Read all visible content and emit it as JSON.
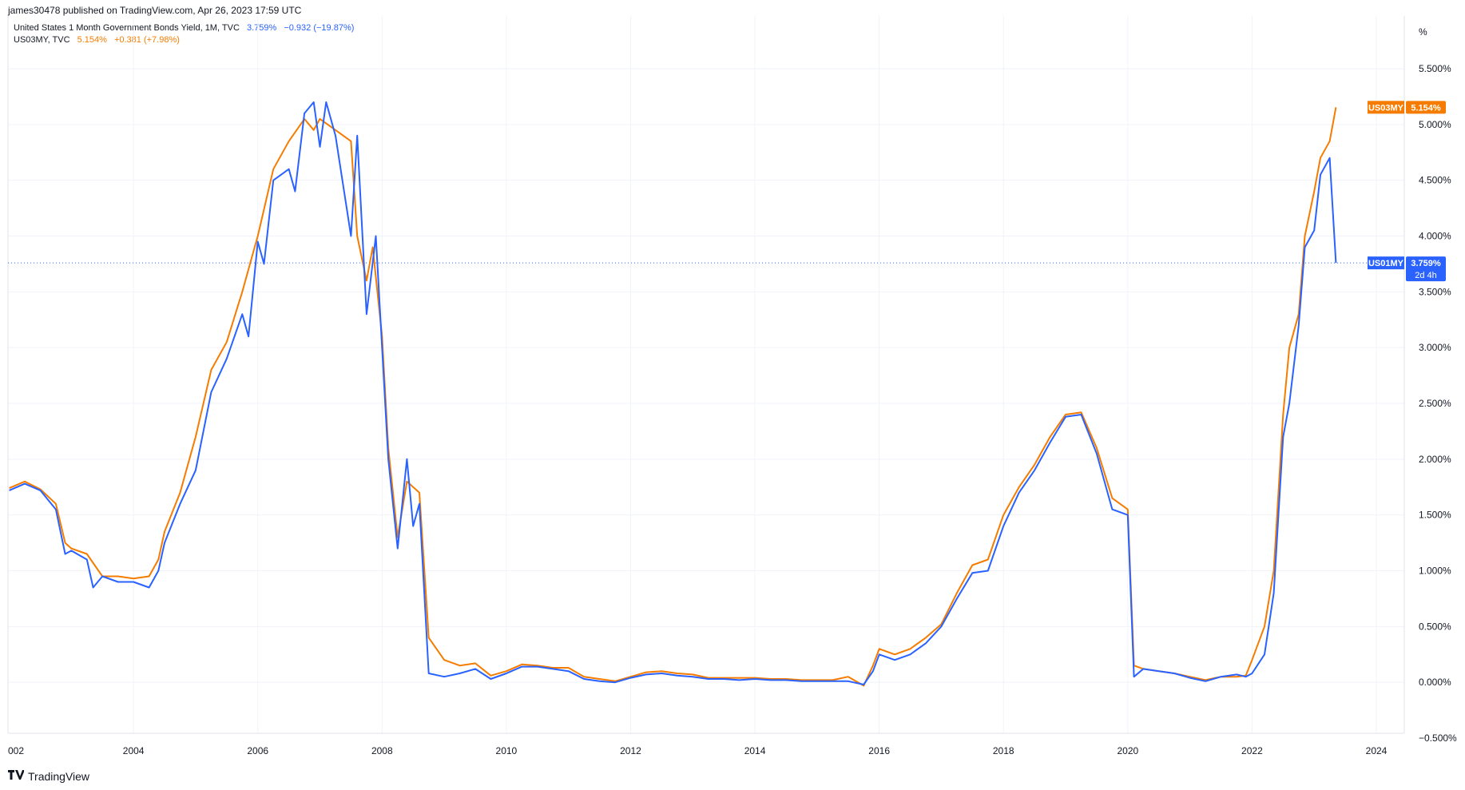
{
  "published_text": "james30478 published on TradingView.com, Apr 26, 2023 17:59 UTC",
  "legend": [
    {
      "name": "United States 1 Month Government Bonds Yield, 1M, TVC",
      "value": "3.759%",
      "change": "−0.932 (−19.87%)",
      "color": "#2962ff"
    },
    {
      "name": "US03MY, TVC",
      "value": "5.154%",
      "change": "+0.381 (+7.98%)",
      "color": "#f57c00"
    }
  ],
  "axis_unit": "%",
  "price_tags": [
    {
      "symbol": "US03MY",
      "value": "5.154%",
      "color": "#f57c00"
    },
    {
      "symbol": "US01MY",
      "value": "3.759%",
      "sub": "2d 4h",
      "color": "#2962ff"
    }
  ],
  "footer_logo": "TradingView",
  "chart_data": {
    "type": "line",
    "grid": true,
    "y_axis_side": "right",
    "ylim": [
      -0.5,
      5.6
    ],
    "yticks": [
      "5.500%",
      "5.000%",
      "4.500%",
      "4.000%",
      "3.500%",
      "3.000%",
      "2.500%",
      "2.000%",
      "1.500%",
      "1.000%",
      "0.500%",
      "0.000%",
      "−0.500%"
    ],
    "yticks_values": [
      5.5,
      5.0,
      4.5,
      4.0,
      3.5,
      3.0,
      2.5,
      2.0,
      1.5,
      1.0,
      0.5,
      0.0,
      -0.5
    ],
    "xticks": [
      "002",
      "2004",
      "2006",
      "2008",
      "2010",
      "2012",
      "2014",
      "2016",
      "2018",
      "2020",
      "2022",
      "2024"
    ],
    "xticks_values": [
      2002.02,
      2004,
      2006,
      2008,
      2010,
      2012,
      2014,
      2016,
      2018,
      2020,
      2022,
      2024
    ],
    "xlim": [
      2001.98,
      2024.45
    ],
    "last_value_line": {
      "series": "US01MY",
      "value": 3.759
    },
    "series": [
      {
        "name": "US03MY",
        "color": "#f57c00",
        "points": [
          [
            2002.0,
            1.74
          ],
          [
            2002.25,
            1.8
          ],
          [
            2002.5,
            1.73
          ],
          [
            2002.75,
            1.6
          ],
          [
            2002.9,
            1.25
          ],
          [
            2003.0,
            1.2
          ],
          [
            2003.25,
            1.15
          ],
          [
            2003.5,
            0.95
          ],
          [
            2003.75,
            0.95
          ],
          [
            2004.0,
            0.93
          ],
          [
            2004.25,
            0.95
          ],
          [
            2004.4,
            1.1
          ],
          [
            2004.5,
            1.35
          ],
          [
            2004.75,
            1.7
          ],
          [
            2005.0,
            2.2
          ],
          [
            2005.25,
            2.8
          ],
          [
            2005.5,
            3.05
          ],
          [
            2005.75,
            3.5
          ],
          [
            2005.9,
            3.8
          ],
          [
            2006.0,
            4.0
          ],
          [
            2006.25,
            4.6
          ],
          [
            2006.5,
            4.85
          ],
          [
            2006.75,
            5.05
          ],
          [
            2006.9,
            4.95
          ],
          [
            2007.0,
            5.05
          ],
          [
            2007.25,
            4.95
          ],
          [
            2007.5,
            4.85
          ],
          [
            2007.6,
            4.0
          ],
          [
            2007.75,
            3.6
          ],
          [
            2007.85,
            3.9
          ],
          [
            2008.0,
            3.1
          ],
          [
            2008.1,
            2.1
          ],
          [
            2008.25,
            1.3
          ],
          [
            2008.4,
            1.8
          ],
          [
            2008.6,
            1.7
          ],
          [
            2008.75,
            0.4
          ],
          [
            2009.0,
            0.2
          ],
          [
            2009.25,
            0.15
          ],
          [
            2009.5,
            0.17
          ],
          [
            2009.75,
            0.06
          ],
          [
            2010.0,
            0.1
          ],
          [
            2010.25,
            0.16
          ],
          [
            2010.5,
            0.15
          ],
          [
            2010.75,
            0.13
          ],
          [
            2011.0,
            0.13
          ],
          [
            2011.25,
            0.05
          ],
          [
            2011.5,
            0.03
          ],
          [
            2011.75,
            0.01
          ],
          [
            2012.0,
            0.05
          ],
          [
            2012.25,
            0.09
          ],
          [
            2012.5,
            0.1
          ],
          [
            2012.75,
            0.08
          ],
          [
            2013.0,
            0.07
          ],
          [
            2013.25,
            0.04
          ],
          [
            2013.5,
            0.04
          ],
          [
            2013.75,
            0.04
          ],
          [
            2014.0,
            0.04
          ],
          [
            2014.25,
            0.03
          ],
          [
            2014.5,
            0.03
          ],
          [
            2014.75,
            0.02
          ],
          [
            2015.0,
            0.02
          ],
          [
            2015.25,
            0.02
          ],
          [
            2015.5,
            0.05
          ],
          [
            2015.75,
            -0.03
          ],
          [
            2015.9,
            0.15
          ],
          [
            2016.0,
            0.3
          ],
          [
            2016.25,
            0.25
          ],
          [
            2016.5,
            0.3
          ],
          [
            2016.75,
            0.4
          ],
          [
            2017.0,
            0.52
          ],
          [
            2017.25,
            0.8
          ],
          [
            2017.5,
            1.05
          ],
          [
            2017.75,
            1.1
          ],
          [
            2018.0,
            1.5
          ],
          [
            2018.25,
            1.75
          ],
          [
            2018.5,
            1.95
          ],
          [
            2018.75,
            2.2
          ],
          [
            2019.0,
            2.4
          ],
          [
            2019.25,
            2.42
          ],
          [
            2019.5,
            2.1
          ],
          [
            2019.75,
            1.65
          ],
          [
            2020.0,
            1.55
          ],
          [
            2020.1,
            0.15
          ],
          [
            2020.25,
            0.12
          ],
          [
            2020.5,
            0.1
          ],
          [
            2020.75,
            0.08
          ],
          [
            2021.0,
            0.05
          ],
          [
            2021.25,
            0.02
          ],
          [
            2021.5,
            0.05
          ],
          [
            2021.75,
            0.05
          ],
          [
            2021.9,
            0.06
          ],
          [
            2022.0,
            0.2
          ],
          [
            2022.2,
            0.5
          ],
          [
            2022.35,
            1.0
          ],
          [
            2022.5,
            2.4
          ],
          [
            2022.6,
            3.0
          ],
          [
            2022.75,
            3.3
          ],
          [
            2022.85,
            4.0
          ],
          [
            2023.0,
            4.4
          ],
          [
            2023.1,
            4.7
          ],
          [
            2023.25,
            4.85
          ],
          [
            2023.35,
            5.154
          ]
        ]
      },
      {
        "name": "US01MY",
        "color": "#2962ff",
        "points": [
          [
            2002.0,
            1.72
          ],
          [
            2002.25,
            1.78
          ],
          [
            2002.5,
            1.72
          ],
          [
            2002.75,
            1.55
          ],
          [
            2002.9,
            1.15
          ],
          [
            2003.0,
            1.18
          ],
          [
            2003.25,
            1.1
          ],
          [
            2003.35,
            0.85
          ],
          [
            2003.5,
            0.95
          ],
          [
            2003.75,
            0.9
          ],
          [
            2004.0,
            0.9
          ],
          [
            2004.25,
            0.85
          ],
          [
            2004.4,
            1.0
          ],
          [
            2004.5,
            1.25
          ],
          [
            2004.75,
            1.6
          ],
          [
            2005.0,
            1.9
          ],
          [
            2005.25,
            2.6
          ],
          [
            2005.5,
            2.9
          ],
          [
            2005.75,
            3.3
          ],
          [
            2005.85,
            3.1
          ],
          [
            2006.0,
            3.95
          ],
          [
            2006.1,
            3.75
          ],
          [
            2006.25,
            4.5
          ],
          [
            2006.5,
            4.6
          ],
          [
            2006.6,
            4.4
          ],
          [
            2006.75,
            5.1
          ],
          [
            2006.9,
            5.2
          ],
          [
            2007.0,
            4.8
          ],
          [
            2007.1,
            5.2
          ],
          [
            2007.25,
            4.9
          ],
          [
            2007.5,
            4.0
          ],
          [
            2007.6,
            4.9
          ],
          [
            2007.75,
            3.3
          ],
          [
            2007.9,
            4.0
          ],
          [
            2008.0,
            3.0
          ],
          [
            2008.1,
            2.0
          ],
          [
            2008.25,
            1.2
          ],
          [
            2008.4,
            2.0
          ],
          [
            2008.5,
            1.4
          ],
          [
            2008.6,
            1.6
          ],
          [
            2008.75,
            0.08
          ],
          [
            2009.0,
            0.05
          ],
          [
            2009.25,
            0.08
          ],
          [
            2009.5,
            0.12
          ],
          [
            2009.75,
            0.03
          ],
          [
            2010.0,
            0.08
          ],
          [
            2010.25,
            0.14
          ],
          [
            2010.5,
            0.14
          ],
          [
            2010.75,
            0.12
          ],
          [
            2011.0,
            0.1
          ],
          [
            2011.25,
            0.03
          ],
          [
            2011.5,
            0.01
          ],
          [
            2011.75,
            0.0
          ],
          [
            2012.0,
            0.04
          ],
          [
            2012.25,
            0.07
          ],
          [
            2012.5,
            0.08
          ],
          [
            2012.75,
            0.06
          ],
          [
            2013.0,
            0.05
          ],
          [
            2013.25,
            0.03
          ],
          [
            2013.5,
            0.03
          ],
          [
            2013.75,
            0.02
          ],
          [
            2014.0,
            0.03
          ],
          [
            2014.25,
            0.02
          ],
          [
            2014.5,
            0.02
          ],
          [
            2014.75,
            0.01
          ],
          [
            2015.0,
            0.01
          ],
          [
            2015.25,
            0.01
          ],
          [
            2015.5,
            0.01
          ],
          [
            2015.75,
            -0.02
          ],
          [
            2015.9,
            0.1
          ],
          [
            2016.0,
            0.25
          ],
          [
            2016.25,
            0.2
          ],
          [
            2016.5,
            0.25
          ],
          [
            2016.75,
            0.35
          ],
          [
            2017.0,
            0.5
          ],
          [
            2017.25,
            0.75
          ],
          [
            2017.5,
            0.98
          ],
          [
            2017.75,
            1.0
          ],
          [
            2018.0,
            1.4
          ],
          [
            2018.25,
            1.7
          ],
          [
            2018.5,
            1.9
          ],
          [
            2018.75,
            2.15
          ],
          [
            2019.0,
            2.38
          ],
          [
            2019.25,
            2.4
          ],
          [
            2019.5,
            2.05
          ],
          [
            2019.75,
            1.55
          ],
          [
            2020.0,
            1.5
          ],
          [
            2020.1,
            0.05
          ],
          [
            2020.25,
            0.12
          ],
          [
            2020.5,
            0.1
          ],
          [
            2020.75,
            0.08
          ],
          [
            2021.0,
            0.04
          ],
          [
            2021.25,
            0.01
          ],
          [
            2021.5,
            0.05
          ],
          [
            2021.75,
            0.07
          ],
          [
            2021.9,
            0.05
          ],
          [
            2022.0,
            0.08
          ],
          [
            2022.2,
            0.25
          ],
          [
            2022.35,
            0.8
          ],
          [
            2022.5,
            2.2
          ],
          [
            2022.6,
            2.5
          ],
          [
            2022.75,
            3.2
          ],
          [
            2022.85,
            3.9
          ],
          [
            2023.0,
            4.05
          ],
          [
            2023.1,
            4.55
          ],
          [
            2023.25,
            4.7
          ],
          [
            2023.35,
            3.759
          ]
        ]
      }
    ]
  }
}
